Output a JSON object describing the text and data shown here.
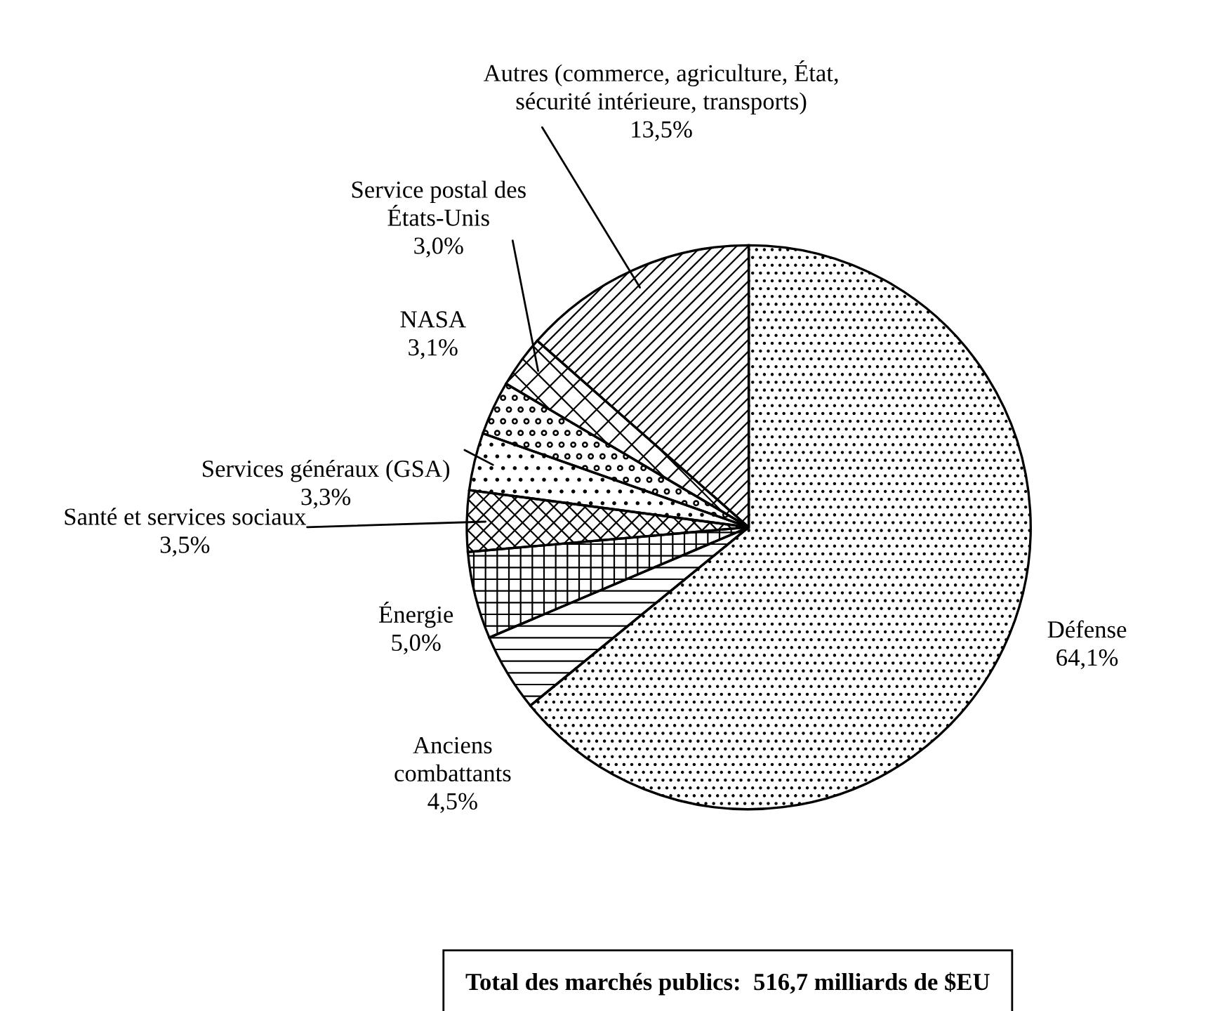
{
  "chart_data": {
    "type": "pie",
    "categories": [
      "Défense",
      "Anciens combattants",
      "Énergie",
      "Santé et services sociaux",
      "Services généraux (GSA)",
      "NASA",
      "Service postal des États-Unis",
      "Autres (commerce, agriculture, État, sécurité intérieure, transports)"
    ],
    "values": [
      64.1,
      4.5,
      5.0,
      3.5,
      3.3,
      3.1,
      3.0,
      13.5
    ],
    "colors": [
      "#ffffff",
      "#ffffff",
      "#ffffff",
      "#ffffff",
      "#ffffff",
      "#ffffff",
      "#ffffff",
      "#ffffff"
    ],
    "value_labels": [
      "64,1%",
      "4,5%",
      "5,0%",
      "3,5%",
      "3,3%",
      "3,1%",
      "3,0%",
      "13,5%"
    ],
    "annotations": [
      "Total des marchés publics:  516,7 milliards de $EU"
    ],
    "legend": false
  }
}
